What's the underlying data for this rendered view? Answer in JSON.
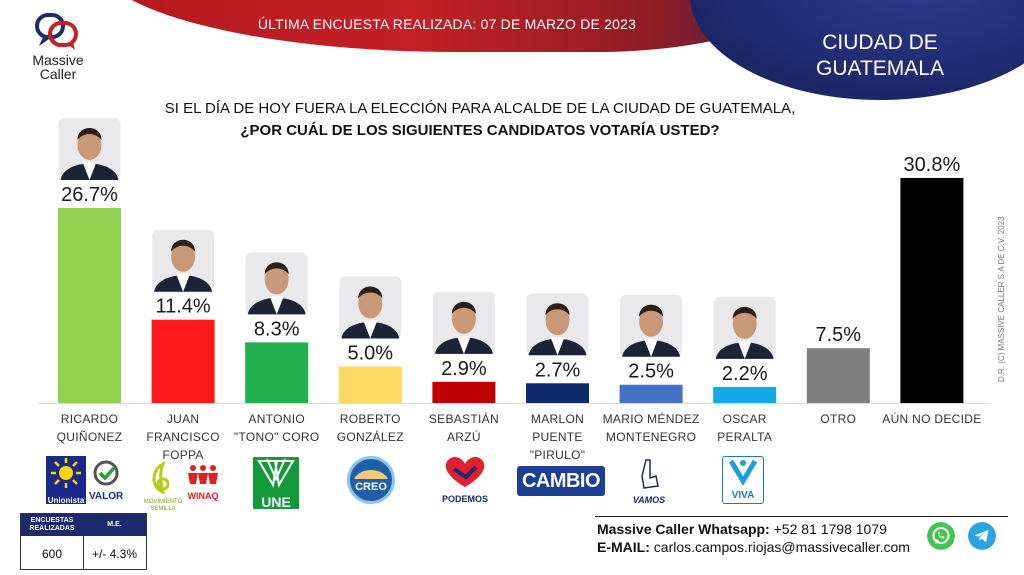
{
  "header": {
    "survey_date": "ÚLTIMA ENCUESTA REALIZADA: 07 DE MARZO DE 2023",
    "city_line1": "CIUDAD DE",
    "city_line2": "GUATEMALA",
    "logo_line1": "Massive",
    "logo_line2": "Caller"
  },
  "question": {
    "line1": "SI EL DÍA DE HOY FUERA LA ELECCIÓN PARA ALCALDE DE LA CIUDAD DE GUATEMALA,",
    "line2": "¿POR CUÁL DE LOS SIGUIENTES CANDIDATOS VOTARÍA USTED?"
  },
  "chart_data": {
    "type": "bar",
    "title": "",
    "xlabel": "",
    "ylabel": "",
    "ylim": [
      0,
      30.8
    ],
    "categories": [
      [
        "RICARDO",
        "QUIÑONEZ"
      ],
      [
        "JUAN",
        "FRANCISCO",
        "FOPPA"
      ],
      [
        "ANTONIO",
        "\"TONO\" CORO"
      ],
      [
        "ROBERTO",
        "GONZÁLEZ"
      ],
      [
        "SEBASTIÁN",
        "ARZÚ"
      ],
      [
        "MARLON",
        "PUENTE",
        "\"PIRULO\""
      ],
      [
        "MARIO MÉNDEZ",
        "MONTENEGRO"
      ],
      [
        "OSCAR",
        "PERALTA"
      ],
      [
        "OTRO"
      ],
      [
        "AÚN NO DECIDE"
      ]
    ],
    "values": [
      26.7,
      11.4,
      8.3,
      5.0,
      2.9,
      2.7,
      2.5,
      2.2,
      7.5,
      30.8
    ],
    "value_labels": [
      "26.7%",
      "11.4%",
      "8.3%",
      "5.0%",
      "2.9%",
      "2.7%",
      "2.5%",
      "2.2%",
      "7.5%",
      "30.8%"
    ],
    "colors": [
      "#92d050",
      "#ff1a1a",
      "#22b14c",
      "#ffd966",
      "#c00000",
      "#0d2b6b",
      "#4472c4",
      "#12a9e8",
      "#7f7f7f",
      "#000000"
    ],
    "has_photo": [
      true,
      true,
      true,
      true,
      true,
      true,
      true,
      true,
      false,
      false
    ]
  },
  "parties": {
    "unionista": "Unionista",
    "valor": "VALOR",
    "semilla": "MOVIMIENTO SEMILLA",
    "winaq": "WINAQ",
    "une": "UNE",
    "creo": "CREO",
    "podemos": "PODEMOS",
    "cambio": "CAMBIO",
    "vamos": "VAMOS",
    "viva": "VIVA"
  },
  "footer": {
    "copyright": "D.R. (C) MASSIVE CALLER S.A DE C.V. 2023",
    "table_head1": "ENCUESTAS REALIZADAS",
    "table_head2": "M.E.",
    "sample_size": "600",
    "margin_error": "+/- 4.3%",
    "whatsapp_label": "Massive Caller Whatsapp:",
    "whatsapp_number": "+52 81 1798 1079",
    "email_label": "E-MAIL:",
    "email": "carlos.campos.riojas@massivecaller.com"
  },
  "icons": {
    "whatsapp": "whatsapp-icon",
    "telegram": "telegram-icon"
  }
}
